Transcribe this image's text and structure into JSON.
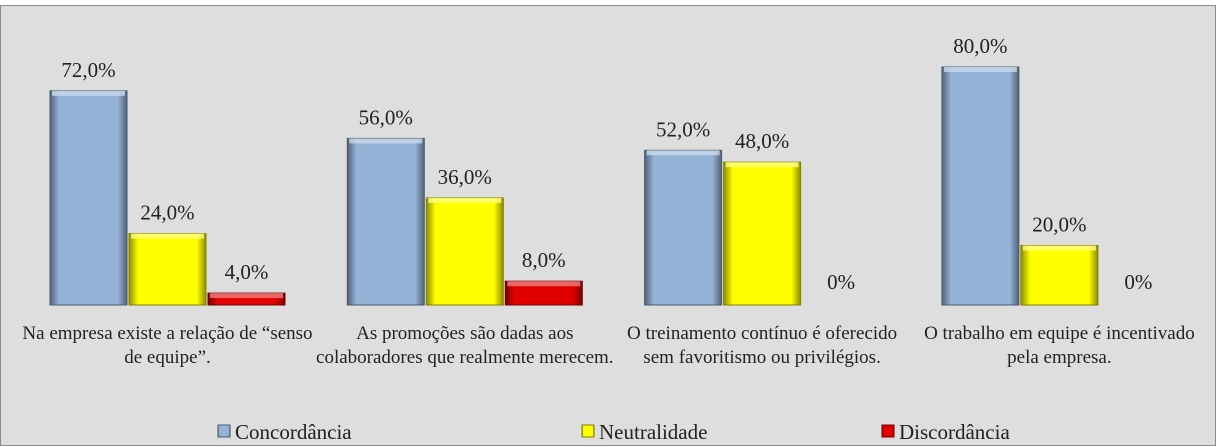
{
  "chart_data": {
    "type": "bar",
    "categories": [
      "Na empresa existe a relação de “senso de equipe”.",
      "As promoções são dadas aos colaboradores que realmente merecem.",
      "O treinamento contínuo é oferecido sem favoritismo ou privilégios.",
      "O trabalho em equipe é incentivado pela empresa."
    ],
    "series": [
      {
        "name": "Concordância",
        "color": "#95b3d7",
        "values": [
          72,
          56,
          52,
          80
        ],
        "value_labels": [
          "72,0%",
          "56,0%",
          "52,0%",
          "80,0%"
        ]
      },
      {
        "name": "Neutralidade",
        "color": "#ffff00",
        "values": [
          24,
          36,
          48,
          20
        ],
        "value_labels": [
          "24,0%",
          "36,0%",
          "48,0%",
          "20,0%"
        ]
      },
      {
        "name": "Discordância",
        "color": "#e00000",
        "values": [
          4,
          8,
          0,
          0
        ],
        "value_labels": [
          "4,0%",
          "8,0%",
          "0%",
          "0%"
        ]
      }
    ],
    "ylim": [
      0,
      90
    ],
    "legend": "bottom"
  }
}
